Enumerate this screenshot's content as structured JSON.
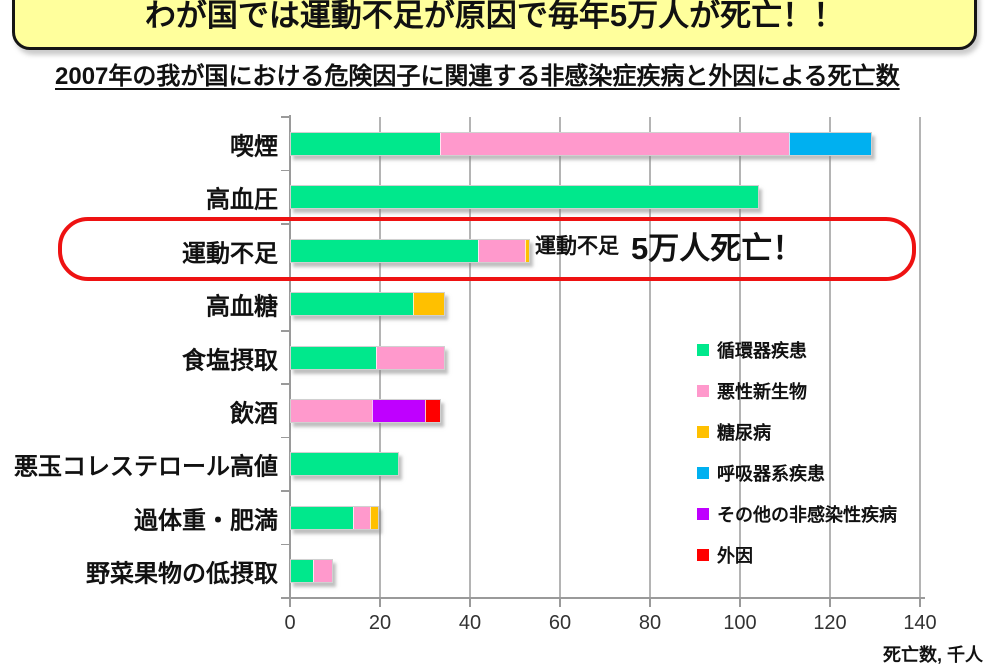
{
  "banner": {
    "title": "わが国では運動不足が原因で毎年5万人が死亡！！",
    "bg_color": "#FFFF9C",
    "border_color": "#151515"
  },
  "heading": "2007年の我が国における危険因子に関連する非感染症疾病と外因による死亡数",
  "annotation": {
    "prefix": "運動不足",
    "emphasis": "5万人死亡！",
    "box_color": "#EE1212",
    "highlighted_category": "運動不足"
  },
  "chart_data": {
    "type": "bar",
    "orientation": "horizontal-stacked",
    "title": "2007年の我が国における危険因子に関連する非感染症疾病と外因による死亡数",
    "xlabel": "死亡数, 千人",
    "xlim": [
      0,
      140
    ],
    "xticks": [
      0,
      20,
      40,
      60,
      80,
      100,
      120,
      140
    ],
    "grid": true,
    "legend_position": "right",
    "categories": [
      "喫煙",
      "高血圧",
      "運動不足",
      "高血糖",
      "食塩摂取",
      "飲酒",
      "悪玉コレステロール高値",
      "過体重・肥満",
      "野菜果物の低摂取"
    ],
    "series": [
      {
        "name": "循環器疾患",
        "color": "#00E88C",
        "values": [
          33.1,
          103.7,
          41.5,
          27.0,
          18.9,
          0,
          23.7,
          13.7,
          4.8
        ]
      },
      {
        "name": "悪性新生物",
        "color": "#FF99CC",
        "values": [
          77.3,
          0,
          10.3,
          0,
          14.8,
          18.0,
          0,
          3.7,
          4.1
        ]
      },
      {
        "name": "糖尿病",
        "color": "#FFC000",
        "values": [
          0,
          0,
          0.6,
          6.7,
          0,
          0,
          0,
          1.5,
          0
        ]
      },
      {
        "name": "呼吸器系疾患",
        "color": "#00B0F0",
        "values": [
          18.1,
          0,
          0,
          0,
          0,
          0,
          0,
          0,
          0
        ]
      },
      {
        "name": "その他の非感染性疾病",
        "color": "#BF00FF",
        "values": [
          0,
          0,
          0,
          0,
          0,
          11.6,
          0,
          0,
          0
        ]
      },
      {
        "name": "外因",
        "color": "#FF0000",
        "values": [
          0,
          0,
          0,
          0,
          0,
          3.0,
          0,
          0,
          0
        ]
      }
    ],
    "totals": [
      128.5,
      103.7,
      52.4,
      33.7,
      33.7,
      32.6,
      23.7,
      18.9,
      8.9
    ]
  }
}
